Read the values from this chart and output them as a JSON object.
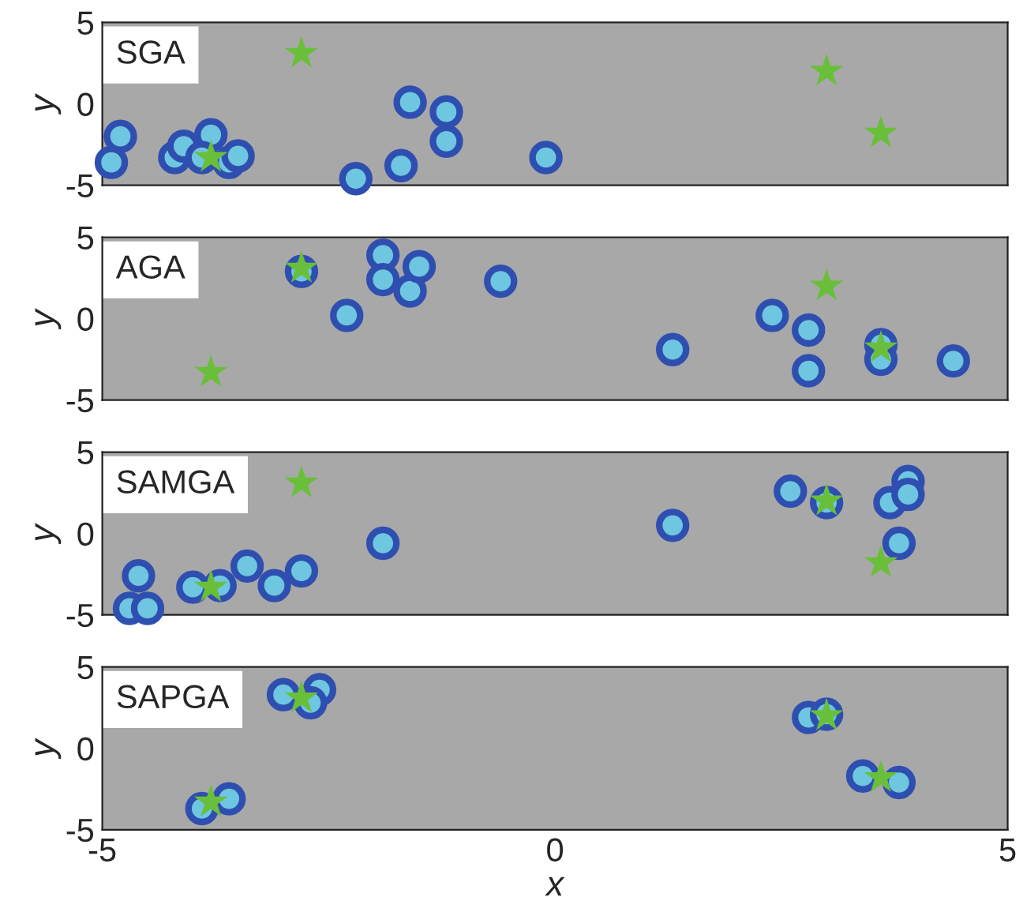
{
  "chart_data": [
    {
      "type": "scatter",
      "title": "SGA",
      "ylabel": "y",
      "xlim": [
        -5,
        5
      ],
      "ylim": [
        -5,
        5
      ],
      "xticks": [
        -5,
        0,
        5
      ],
      "yticks": [
        -5,
        0,
        5
      ],
      "tick_labels": "y",
      "series": [
        {
          "color": "#6ec6e0",
          "marker": "circle",
          "x": [
            -4.8,
            -4.9,
            -4.2,
            -4.1,
            -3.8,
            -3.9,
            -3.6,
            -3.5,
            -2.2,
            -1.7,
            -1.6,
            -1.2,
            -1.2,
            -0.1
          ],
          "values": [
            -2.0,
            -3.6,
            -3.3,
            -2.6,
            -1.9,
            -3.3,
            -3.6,
            -3.2,
            -4.6,
            -3.8,
            0.1,
            -0.5,
            -2.3,
            -3.3
          ]
        },
        {
          "color": "#6abf3a",
          "marker": "star",
          "x": [
            3.0,
            -2.8,
            -3.8,
            3.6
          ],
          "values": [
            2.0,
            3.1,
            -3.3,
            -1.8
          ]
        }
      ]
    },
    {
      "type": "scatter",
      "title": "AGA",
      "ylabel": "y",
      "xlim": [
        -5,
        5
      ],
      "ylim": [
        -5,
        5
      ],
      "xticks": [
        -5,
        0,
        5
      ],
      "yticks": [
        -5,
        0,
        5
      ],
      "tick_labels": "y",
      "series": [
        {
          "color": "#6ec6e0",
          "marker": "circle",
          "x": [
            -2.8,
            -1.9,
            -1.9,
            -1.6,
            -1.5,
            -0.6,
            -2.3,
            1.3,
            2.4,
            2.8,
            2.8,
            3.6,
            3.6,
            4.4
          ],
          "values": [
            2.9,
            3.9,
            2.4,
            1.7,
            3.2,
            2.3,
            0.2,
            -1.9,
            0.2,
            -0.7,
            -3.2,
            -1.6,
            -2.5,
            -2.6
          ]
        },
        {
          "color": "#6abf3a",
          "marker": "star",
          "x": [
            3.0,
            -2.8,
            -3.8,
            3.6
          ],
          "values": [
            2.0,
            3.1,
            -3.3,
            -1.8
          ]
        }
      ]
    },
    {
      "type": "scatter",
      "title": "SAMGA",
      "ylabel": "y",
      "xlim": [
        -5,
        5
      ],
      "ylim": [
        -5,
        5
      ],
      "xticks": [
        -5,
        0,
        5
      ],
      "yticks": [
        -5,
        0,
        5
      ],
      "tick_labels": "y",
      "series": [
        {
          "color": "#6ec6e0",
          "marker": "circle",
          "x": [
            -4.6,
            -4.7,
            -4.5,
            -4.0,
            -3.7,
            -3.4,
            -3.1,
            -2.8,
            -1.9,
            1.3,
            2.6,
            3.0,
            3.7,
            3.9,
            3.9,
            3.8
          ],
          "values": [
            -2.6,
            -4.6,
            -4.6,
            -3.3,
            -3.2,
            -2.0,
            -3.2,
            -2.3,
            -0.6,
            0.5,
            2.6,
            1.9,
            1.9,
            3.2,
            2.4,
            -0.6
          ]
        },
        {
          "color": "#6abf3a",
          "marker": "star",
          "x": [
            3.0,
            -2.8,
            -3.8,
            3.6
          ],
          "values": [
            2.0,
            3.1,
            -3.3,
            -1.8
          ]
        }
      ]
    },
    {
      "type": "scatter",
      "title": "SAPGA",
      "xlabel": "x",
      "ylabel": "y",
      "xlim": [
        -5,
        5
      ],
      "ylim": [
        -5,
        5
      ],
      "xticks": [
        -5,
        0,
        5
      ],
      "yticks": [
        -5,
        0,
        5
      ],
      "series": [
        {
          "color": "#6ec6e0",
          "marker": "circle",
          "x": [
            -3.0,
            -2.6,
            -2.7,
            -3.9,
            -3.6,
            2.8,
            3.0,
            3.4,
            3.8
          ],
          "values": [
            3.3,
            3.6,
            2.8,
            -3.7,
            -3.1,
            1.9,
            2.1,
            -1.7,
            -2.1
          ]
        },
        {
          "color": "#6abf3a",
          "marker": "star",
          "x": [
            3.0,
            -2.8,
            -3.8,
            3.6
          ],
          "values": [
            2.0,
            3.1,
            -3.3,
            -1.8
          ]
        }
      ]
    }
  ]
}
